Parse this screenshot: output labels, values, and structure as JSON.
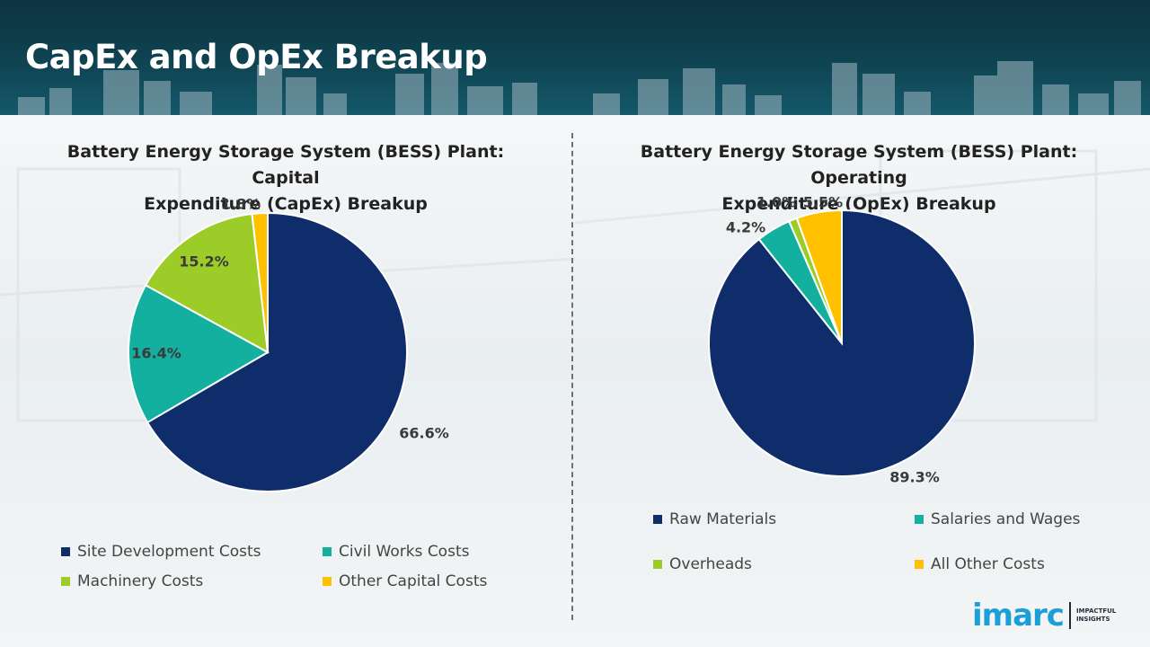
{
  "header": {
    "title": "CapEx and OpEx Breakup"
  },
  "chart_data": [
    {
      "type": "pie",
      "title": "Battery Energy Storage System (BESS) Plant: Capital Expenditure (CapEx) Breakup",
      "title_lines": [
        "Battery Energy Storage System (BESS) Plant: Capital",
        "Expenditure (CapEx) Breakup"
      ],
      "categories": [
        "Site Development Costs",
        "Civil Works Costs",
        "Machinery Costs",
        "Other Capital Costs"
      ],
      "values": [
        66.6,
        16.4,
        15.2,
        1.8
      ],
      "labels": [
        "66.6%",
        "16.4%",
        "15.2%",
        "1.8%"
      ],
      "colors": [
        "#0f2d6b",
        "#13b0a0",
        "#9ccc28",
        "#ffc000"
      ],
      "legend_position": "bottom"
    },
    {
      "type": "pie",
      "title": "Battery Energy Storage System (BESS) Plant: Operating Expenditure (OpEx) Breakup",
      "title_lines": [
        "Battery Energy Storage System (BESS) Plant: Operating",
        "Expenditure (OpEx) Breakup"
      ],
      "categories": [
        "Raw Materials",
        "Salaries and Wages",
        "Overheads",
        "All Other Costs"
      ],
      "values": [
        89.3,
        4.2,
        1.0,
        5.5
      ],
      "labels": [
        "89.3%",
        "4.2%",
        "1.0%",
        "5.5%"
      ],
      "colors": [
        "#0f2d6b",
        "#13b0a0",
        "#9ccc28",
        "#ffc000"
      ],
      "legend_position": "bottom"
    }
  ],
  "logo": {
    "name": "imarc",
    "tagline_1": "IMPACTFUL",
    "tagline_2": "INSIGHTS"
  }
}
